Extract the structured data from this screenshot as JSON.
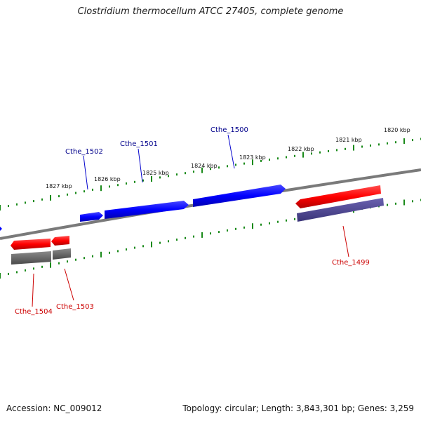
{
  "title": "Clostridium thermocellum ATCC 27405, complete genome",
  "footer": {
    "accession": "Accession: NC_009012",
    "summary": "Topology: circular; Length: 3,843,301 bp; Genes: 3,259"
  },
  "kbp_labels": [
    "1820 kbp",
    "1821 kbp",
    "1822 kbp",
    "1823 kbp",
    "1824 kbp",
    "1825 kbp",
    "1826 kbp",
    "1827 kbp"
  ],
  "genes": {
    "upper": [
      "Cthe_1500",
      "Cthe_1501",
      "Cthe_1502"
    ],
    "lower": [
      "Cthe_1499",
      "Cthe_1503",
      "Cthe_1504"
    ]
  },
  "colors": {
    "forward": "#0000ff",
    "reverse": "#ff0000",
    "reverse_shadow": "#4b4490",
    "reverse_grey": "#666666",
    "tick": "#1a8a1a",
    "backbone": "#808080",
    "upper_label": "#00008b",
    "lower_label": "#cc0000"
  }
}
